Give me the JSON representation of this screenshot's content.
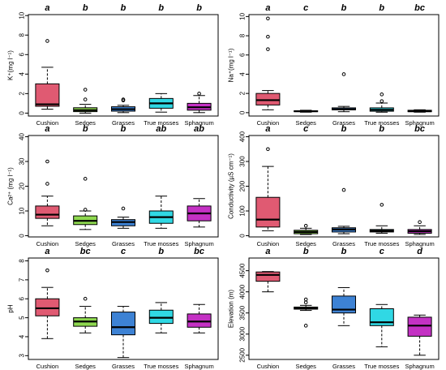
{
  "chart_data": {
    "type": "boxplot",
    "categories": [
      "Cushion",
      "Sedges",
      "Grasses",
      "True mosses",
      "Sphagnum"
    ],
    "colors": [
      "#e05a72",
      "#8ed84f",
      "#3d82d4",
      "#30d8e4",
      "#c431c4"
    ],
    "panels": [
      {
        "id": "k",
        "ylabel": "K⁺(mg l⁻¹)",
        "ylim": [
          -0.3,
          10.1
        ],
        "yticks": [
          "0",
          "2",
          "4",
          "6",
          "8",
          "10"
        ],
        "ytick_values": [
          0,
          2,
          4,
          6,
          8,
          10
        ],
        "letters": [
          "a",
          "b",
          "b",
          "b",
          "b"
        ],
        "boxes": [
          {
            "whislo": 0.4,
            "q1": 0.7,
            "med": 0.9,
            "q3": 3.0,
            "whishi": 4.7,
            "fliers": [
              7.4
            ]
          },
          {
            "whislo": 0.0,
            "q1": 0.15,
            "med": 0.3,
            "q3": 0.55,
            "whishi": 0.9,
            "fliers": [
              1.4,
              2.4
            ]
          },
          {
            "whislo": 0.05,
            "q1": 0.2,
            "med": 0.4,
            "q3": 0.65,
            "whishi": 0.8,
            "fliers": [
              1.3,
              1.4
            ]
          },
          {
            "whislo": 0.1,
            "q1": 0.5,
            "med": 1.0,
            "q3": 1.5,
            "whishi": 2.0,
            "fliers": []
          },
          {
            "whislo": 0.05,
            "q1": 0.3,
            "med": 0.6,
            "q3": 1.0,
            "whishi": 1.8,
            "fliers": [
              2.0
            ]
          }
        ]
      },
      {
        "id": "na",
        "ylabel": "Na⁺(mg l⁻¹)",
        "ylim": [
          -0.35,
          10.2
        ],
        "yticks": [
          "0",
          "2",
          "4",
          "6",
          "8",
          "10"
        ],
        "ytick_values": [
          0,
          2,
          4,
          6,
          8,
          10
        ],
        "letters": [
          "a",
          "c",
          "b",
          "b",
          "bc"
        ],
        "boxes": [
          {
            "whislo": 0.3,
            "q1": 0.8,
            "med": 1.3,
            "q3": 2.0,
            "whishi": 2.3,
            "fliers": [
              6.6,
              7.9,
              9.8
            ]
          },
          {
            "whislo": 0.05,
            "q1": 0.1,
            "med": 0.15,
            "q3": 0.2,
            "whishi": 0.25,
            "fliers": []
          },
          {
            "whislo": 0.1,
            "q1": 0.3,
            "med": 0.35,
            "q3": 0.5,
            "whishi": 0.65,
            "fliers": [
              4.0
            ]
          },
          {
            "whislo": 0.05,
            "q1": 0.15,
            "med": 0.3,
            "q3": 0.5,
            "whishi": 1.0,
            "fliers": [
              1.2,
              1.9
            ]
          },
          {
            "whislo": 0.05,
            "q1": 0.1,
            "med": 0.15,
            "q3": 0.25,
            "whishi": 0.3,
            "fliers": []
          }
        ]
      },
      {
        "id": "ca",
        "ylabel": "Ca²⁺ (mg l⁻¹)",
        "ylim": [
          -0.5,
          40.5
        ],
        "yticks": [
          "0",
          "10",
          "20",
          "30",
          "40"
        ],
        "ytick_values": [
          0,
          10,
          20,
          30,
          40
        ],
        "letters": [
          "a",
          "b",
          "b",
          "ab",
          "ab"
        ],
        "boxes": [
          {
            "whislo": 4,
            "q1": 7,
            "med": 8.5,
            "q3": 12,
            "whishi": 16,
            "fliers": [
              21,
              30
            ]
          },
          {
            "whislo": 2.5,
            "q1": 4.5,
            "med": 6,
            "q3": 8,
            "whishi": 10,
            "fliers": [
              10.5,
              23
            ]
          },
          {
            "whislo": 3,
            "q1": 4,
            "med": 5.5,
            "q3": 6.5,
            "whishi": 7.5,
            "fliers": [
              11
            ]
          },
          {
            "whislo": 3,
            "q1": 5,
            "med": 7.5,
            "q3": 10,
            "whishi": 16,
            "fliers": []
          },
          {
            "whislo": 3.5,
            "q1": 6,
            "med": 9,
            "q3": 12,
            "whishi": 15,
            "fliers": []
          }
        ]
      },
      {
        "id": "cond",
        "ylabel": "Conductivity (µS cm⁻¹)",
        "ylim": [
          -5,
          405
        ],
        "yticks": [
          "0",
          "100",
          "200",
          "300",
          "400"
        ],
        "ytick_values": [
          0,
          100,
          200,
          300,
          400
        ],
        "letters": [
          "a",
          "c",
          "b",
          "b",
          "bc"
        ],
        "boxes": [
          {
            "whislo": 20,
            "q1": 35,
            "med": 65,
            "q3": 155,
            "whishi": 280,
            "fliers": [
              350
            ]
          },
          {
            "whislo": 5,
            "q1": 8,
            "med": 15,
            "q3": 22,
            "whishi": 30,
            "fliers": [
              40
            ]
          },
          {
            "whislo": 8,
            "q1": 15,
            "med": 25,
            "q3": 32,
            "whishi": 38,
            "fliers": [
              185
            ]
          },
          {
            "whislo": 10,
            "q1": 15,
            "med": 20,
            "q3": 25,
            "whishi": 40,
            "fliers": [
              125
            ]
          },
          {
            "whislo": 5,
            "q1": 10,
            "med": 18,
            "q3": 25,
            "whishi": 40,
            "fliers": [
              55
            ]
          }
        ]
      },
      {
        "id": "ph",
        "ylabel": "pH",
        "ylim": [
          2.8,
          8.15
        ],
        "yticks": [
          "3",
          "4",
          "5",
          "6",
          "7",
          "8"
        ],
        "ytick_values": [
          3,
          4,
          5,
          6,
          7,
          8
        ],
        "letters": [
          "a",
          "bc",
          "c",
          "b",
          "bc"
        ],
        "boxes": [
          {
            "whislo": 3.9,
            "q1": 5.1,
            "med": 5.5,
            "q3": 6.0,
            "whishi": 6.6,
            "fliers": [
              7.5
            ]
          },
          {
            "whislo": 4.2,
            "q1": 4.55,
            "med": 4.8,
            "q3": 5.0,
            "whishi": 5.6,
            "fliers": [
              6.0
            ]
          },
          {
            "whislo": 2.9,
            "q1": 4.1,
            "med": 4.5,
            "q3": 5.3,
            "whishi": 5.6,
            "fliers": []
          },
          {
            "whislo": 4.2,
            "q1": 4.7,
            "med": 5.0,
            "q3": 5.4,
            "whishi": 5.8,
            "fliers": []
          },
          {
            "whislo": 4.2,
            "q1": 4.5,
            "med": 4.8,
            "q3": 5.2,
            "whishi": 5.7,
            "fliers": []
          }
        ]
      },
      {
        "id": "elev",
        "ylabel": "Elevation (m)",
        "ylim": [
          2400,
          4800
        ],
        "yticks": [
          "2500",
          "3000",
          "3500",
          "4000",
          "4500"
        ],
        "ytick_values": [
          2500,
          3000,
          3500,
          4000,
          4500
        ],
        "letters": [
          "a",
          "b",
          "b",
          "c",
          "d"
        ],
        "boxes": [
          {
            "whislo": 4000,
            "q1": 4250,
            "med": 4400,
            "q3": 4470,
            "whishi": 4480,
            "fliers": []
          },
          {
            "whislo": 3560,
            "q1": 3590,
            "med": 3610,
            "q3": 3640,
            "whishi": 3680,
            "fliers": [
              3200,
              3750,
              3820
            ]
          },
          {
            "whislo": 3200,
            "q1": 3500,
            "med": 3580,
            "q3": 3900,
            "whishi": 4100,
            "fliers": []
          },
          {
            "whislo": 2700,
            "q1": 3200,
            "med": 3280,
            "q3": 3600,
            "whishi": 3700,
            "fliers": []
          },
          {
            "whislo": 2500,
            "q1": 2950,
            "med": 3200,
            "q3": 3400,
            "whishi": 3450,
            "fliers": []
          }
        ]
      }
    ]
  }
}
